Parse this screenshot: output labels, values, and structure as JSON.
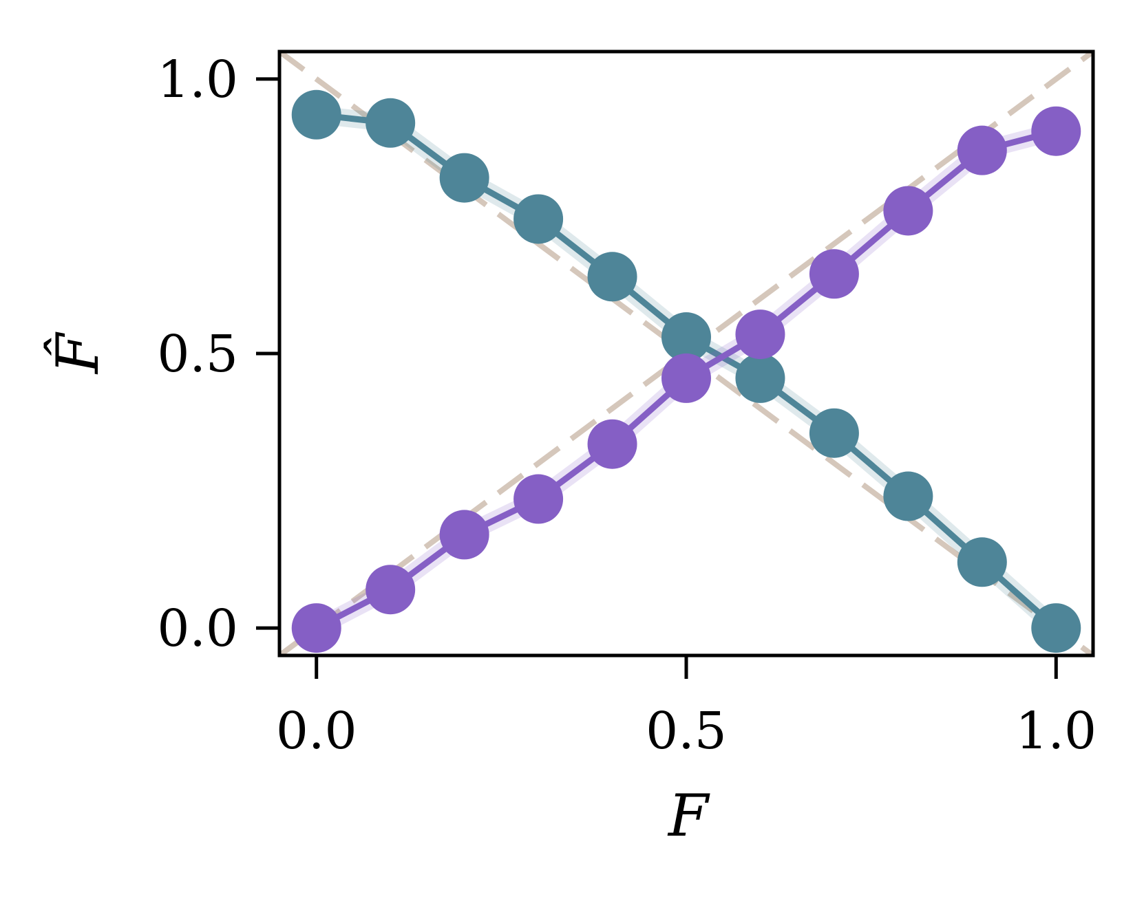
{
  "chart_data": {
    "type": "line",
    "title": "",
    "xlabel": "F",
    "ylabel": "F̂",
    "xlim": [
      -0.05,
      1.05
    ],
    "ylim": [
      -0.05,
      1.05
    ],
    "xticks": [
      0.0,
      0.5,
      1.0
    ],
    "yticks": [
      0.0,
      0.5,
      1.0
    ],
    "xtick_labels": [
      "0.0",
      "0.5",
      "1.0"
    ],
    "ytick_labels": [
      "0.0",
      "0.5",
      "1.0"
    ],
    "grid": false,
    "legend": false,
    "x": [
      0.0,
      0.1,
      0.2,
      0.3,
      0.4,
      0.5,
      0.6,
      0.7,
      0.8,
      0.9,
      1.0
    ],
    "series": [
      {
        "color": "#4e8598",
        "values": [
          0.935,
          0.92,
          0.82,
          0.745,
          0.64,
          0.53,
          0.455,
          0.355,
          0.24,
          0.12,
          0.0
        ]
      },
      {
        "color": "#855fc5",
        "values": [
          0.0,
          0.07,
          0.17,
          0.235,
          0.335,
          0.455,
          0.535,
          0.645,
          0.76,
          0.87,
          0.905
        ]
      }
    ],
    "reference_lines": [
      {
        "style": "dashed",
        "color": "#d5c7bb",
        "from": [
          -0.05,
          -0.05
        ],
        "to": [
          1.05,
          1.05
        ]
      },
      {
        "style": "dashed",
        "color": "#d5c7bb",
        "from": [
          -0.05,
          1.05
        ],
        "to": [
          1.05,
          -0.05
        ]
      }
    ]
  }
}
